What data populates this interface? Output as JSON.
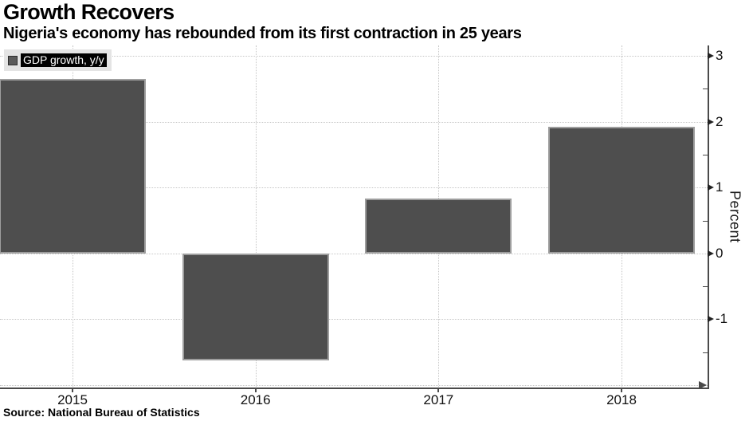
{
  "header": {
    "title": "Growth Recovers",
    "subtitle": "Nigeria's economy has rebounded from its first contraction in 25 years"
  },
  "legend": {
    "label": "GDP growth, y/y",
    "marker_color": "#5a5a5a"
  },
  "footer": {
    "source": "Source: National Bureau of Statistics"
  },
  "chart_data": {
    "type": "bar",
    "title": "Growth Recovers",
    "subtitle": "Nigeria's economy has rebounded from its first contraction in 25 years",
    "series_name": "GDP growth, y/y",
    "categories": [
      "2015",
      "2016",
      "2017",
      "2018"
    ],
    "values": [
      2.65,
      -1.62,
      0.83,
      1.93
    ],
    "xlabel": "",
    "ylabel": "Percent",
    "ylabel_position": "right",
    "ylim": [
      -2.05,
      3.16
    ],
    "yticks": [
      -1,
      0,
      1,
      2,
      3
    ],
    "hgrid_values": [
      -2,
      -1,
      0,
      1,
      2,
      3
    ],
    "minor_yticks": [
      -1.5,
      -0.5,
      0.5,
      1.5,
      2.5
    ],
    "grid": "dotted",
    "legend_position": "top-left",
    "axis_side": "right",
    "bar_color": "#4e4e4e",
    "bar_border_color": "#9e9e9e",
    "axis_color": "#4a4a4a",
    "grid_color": "#c6c6c6",
    "tick_label_color": "#111111",
    "source": "Source: National Bureau of Statistics"
  }
}
